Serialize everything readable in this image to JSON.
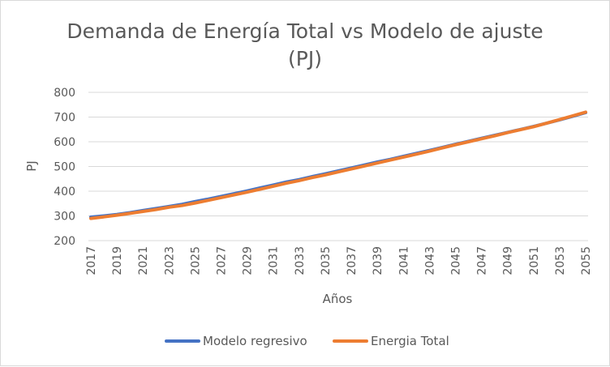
{
  "chart_data": {
    "type": "line",
    "title_line1": "Demanda de Energía Total vs Modelo de ajuste",
    "title_line2": "(PJ)",
    "xlabel": "Años",
    "ylabel": "PJ",
    "ylim": [
      200,
      800
    ],
    "yticks": [
      "200",
      "300",
      "400",
      "500",
      "600",
      "700",
      "800"
    ],
    "grid": "horizontal",
    "legend_position": "bottom",
    "x": [
      2017,
      2018,
      2019,
      2020,
      2021,
      2022,
      2023,
      2024,
      2025,
      2026,
      2027,
      2028,
      2029,
      2030,
      2031,
      2032,
      2033,
      2034,
      2035,
      2036,
      2037,
      2038,
      2039,
      2040,
      2041,
      2042,
      2043,
      2044,
      2045,
      2046,
      2047,
      2048,
      2049,
      2050,
      2051,
      2052,
      2053,
      2054,
      2055
    ],
    "xtick_labels": [
      "2017",
      "2019",
      "2021",
      "2023",
      "2025",
      "2027",
      "2029",
      "2031",
      "2033",
      "2035",
      "2037",
      "2039",
      "2041",
      "2043",
      "2045",
      "2047",
      "2049",
      "2051",
      "2053",
      "2055"
    ],
    "series": [
      {
        "name": "Modelo regresivo",
        "color": "#4472c4",
        "values": [
          295,
          300,
          306,
          313,
          322,
          330,
          338,
          347,
          358,
          368,
          379,
          390,
          401,
          413,
          425,
          437,
          447,
          459,
          470,
          482,
          494,
          506,
          518,
          529,
          541,
          553,
          565,
          577,
          590,
          602,
          614,
          626,
          638,
          650,
          662,
          675,
          689,
          703,
          718
        ]
      },
      {
        "name": "Energia Total",
        "color": "#ed7d31",
        "values": [
          290,
          296,
          303,
          310,
          318,
          326,
          335,
          342,
          352,
          363,
          374,
          385,
          396,
          408,
          420,
          432,
          443,
          455,
          466,
          478,
          490,
          502,
          514,
          526,
          538,
          550,
          562,
          575,
          588,
          600,
          612,
          624,
          637,
          649,
          661,
          675,
          690,
          705,
          720
        ]
      }
    ]
  }
}
